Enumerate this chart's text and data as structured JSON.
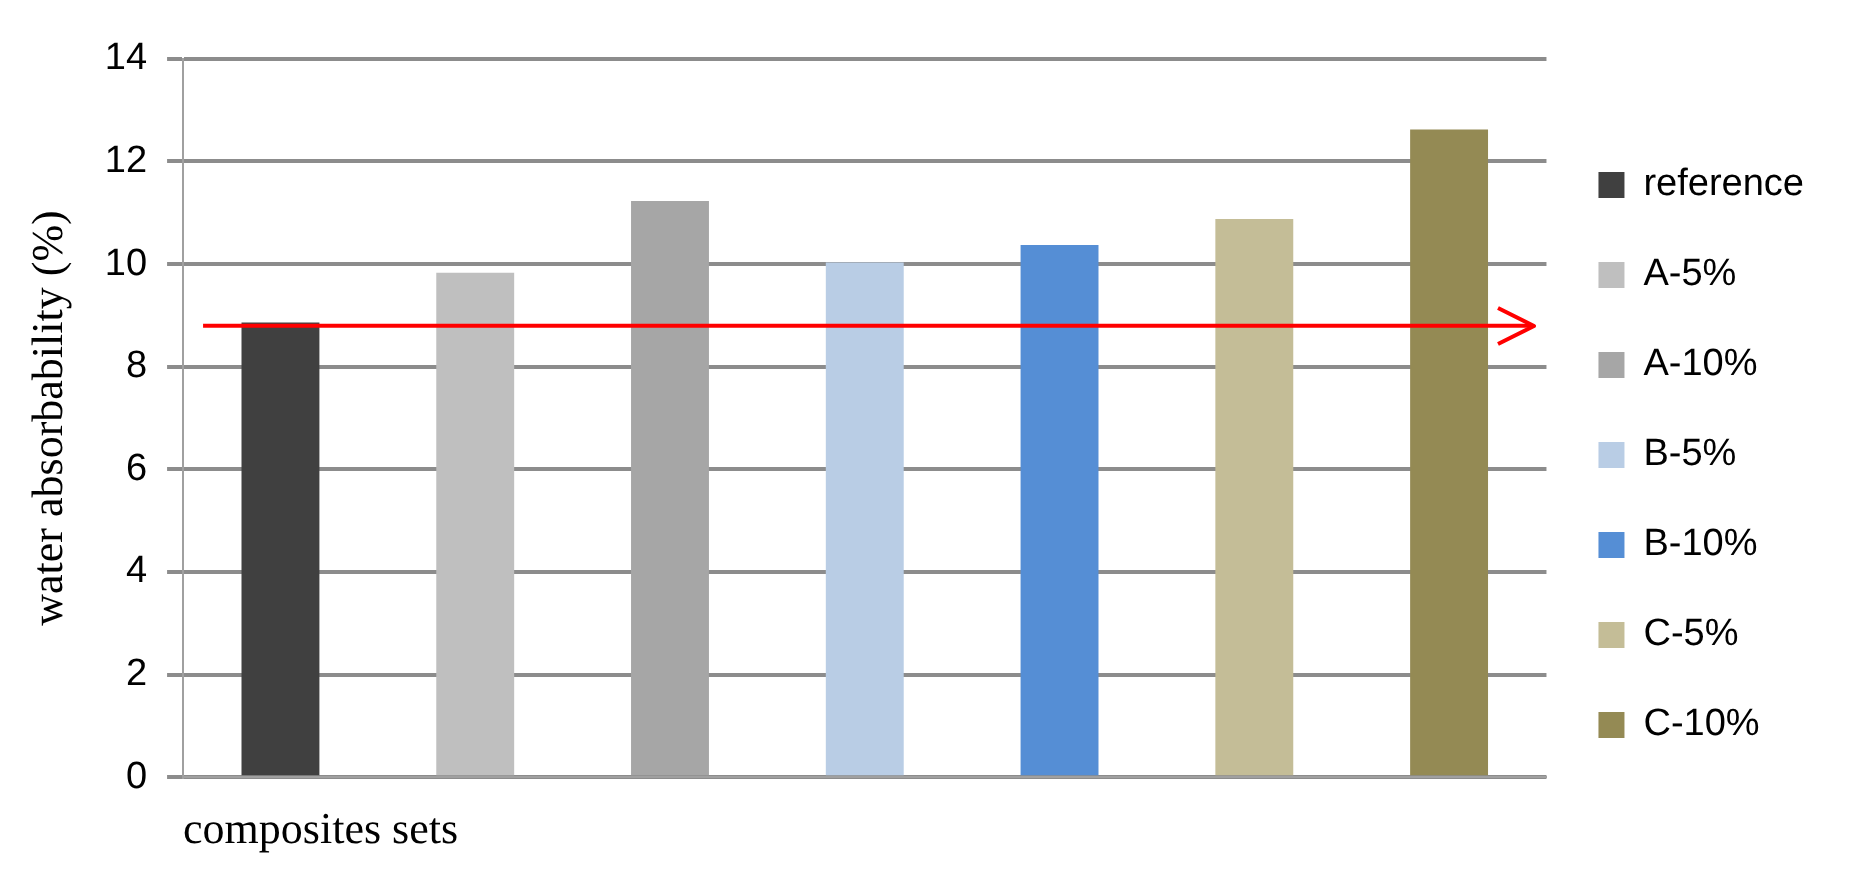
{
  "chart_data": {
    "type": "bar",
    "xlabel": "composites sets",
    "ylabel": "water absorbability (%)",
    "categories": [
      null
    ],
    "series": [
      {
        "name": "reference",
        "color": "#404040",
        "values": [
          8.86
        ]
      },
      {
        "name": "A-5%",
        "color": "#bfbfbf",
        "values": [
          9.83
        ]
      },
      {
        "name": "A-10%",
        "color": "#a6a6a6",
        "values": [
          11.23
        ]
      },
      {
        "name": "B-5%",
        "color": "#b9cde5",
        "values": [
          10.03
        ]
      },
      {
        "name": "B-10%",
        "color": "#558ed5",
        "values": [
          10.37
        ]
      },
      {
        "name": "C-5%",
        "color": "#c4bd97",
        "values": [
          10.88
        ]
      },
      {
        "name": "C-10%",
        "color": "#948a54",
        "values": [
          12.62
        ]
      }
    ],
    "ylim": [
      0,
      14
    ],
    "yticks": [
      0,
      2,
      4,
      6,
      8,
      10,
      12,
      14
    ],
    "grid": "y",
    "legend": "right",
    "ref_lines": [
      {
        "axis": "y",
        "value": 8.8,
        "color": "#ff0000"
      }
    ]
  }
}
